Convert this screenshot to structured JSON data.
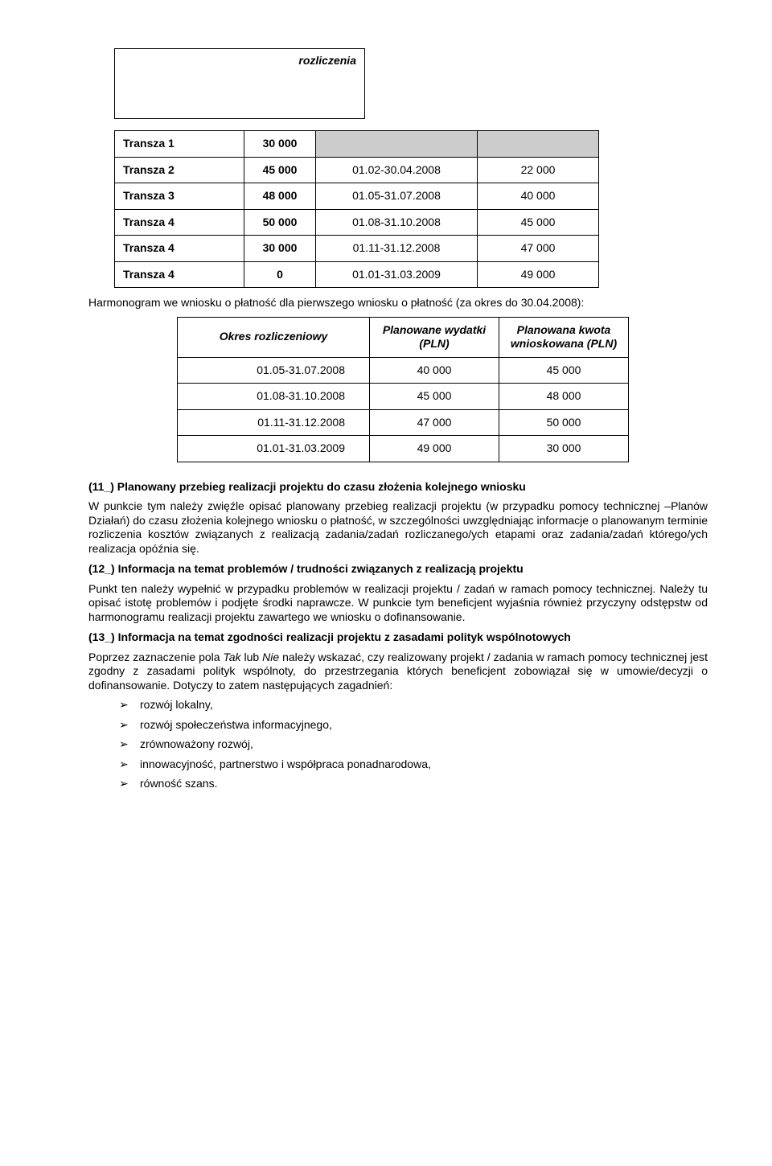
{
  "topCellText": "rozliczenia",
  "table1": {
    "rows": [
      {
        "c1": "Transza 1",
        "c2": "30 000",
        "c3": "",
        "c4": "",
        "grey": true
      },
      {
        "c1": "Transza 2",
        "c2": "45 000",
        "c3": "01.02-30.04.2008",
        "c4": "22 000"
      },
      {
        "c1": "Transza 3",
        "c2": "48 000",
        "c3": "01.05-31.07.2008",
        "c4": "40 000"
      },
      {
        "c1": "Transza 4",
        "c2": "50 000",
        "c3": "01.08-31.10.2008",
        "c4": "45 000"
      },
      {
        "c1": "Transza 4",
        "c2": "30 000",
        "c3": "01.11-31.12.2008",
        "c4": "47 000"
      },
      {
        "c1": "Transza 4",
        "c2": "0",
        "c3": "01.01-31.03.2009",
        "c4": "49 000"
      }
    ]
  },
  "caption1": "Harmonogram we wniosku o płatność dla pierwszego wniosku o płatność (za okres do 30.04.2008):",
  "table2": {
    "headers": {
      "h1": "Okres rozliczeniowy",
      "h2": "Planowane wydatki (PLN)",
      "h3": "Planowana kwota wnioskowana (PLN)"
    },
    "rows": [
      {
        "d1": "01.05-31.07.2008",
        "d2": "40 000",
        "d3": "45 000"
      },
      {
        "d1": "01.08-31.10.2008",
        "d2": "45 000",
        "d3": "48 000"
      },
      {
        "d1": "01.11-31.12.2008",
        "d2": "47 000",
        "d3": "50 000"
      },
      {
        "d1": "01.01-31.03.2009",
        "d2": "49 000",
        "d3": "30 000"
      }
    ]
  },
  "sections": {
    "s11_title": "(11_) Planowany przebieg realizacji projektu do czasu złożenia kolejnego wniosku",
    "s11_body": "W punkcie tym należy zwięźle opisać planowany przebieg realizacji projektu (w przypadku pomocy technicznej –Planów Działań) do czasu złożenia kolejnego wniosku o płatność, w szczególności uwzględniając informacje o planowanym terminie rozliczenia kosztów związanych z realizacją zadania/zadań rozliczanego/ych etapami oraz zadania/zadań którego/ych realizacja opóźnia się.",
    "s12_title": "(12_) Informacja na temat problemów / trudności związanych z realizacją projektu",
    "s12_body": "Punkt ten należy wypełnić w przypadku problemów w realizacji projektu / zadań w ramach pomocy technicznej. Należy tu opisać istotę problemów i podjęte środki naprawcze. W punkcie tym beneficjent wyjaśnia również przyczyny odstępstw od harmonogramu realizacji projektu zawartego we wniosku o dofinansowanie.",
    "s13_title": "(13_) Informacja na temat zgodności realizacji projektu z zasadami polityk wspólnotowych",
    "s13_body_a": "Poprzez zaznaczenie pola ",
    "s13_body_tak": "Tak",
    "s13_body_b": " lub ",
    "s13_body_nie": "Nie",
    "s13_body_c": " należy wskazać, czy realizowany projekt / zadania w ramach pomocy technicznej jest zgodny z zasadami polityk wspólnoty, do przestrzegania których beneficjent zobowiązał się w umowie/decyzji o dofinansowanie. Dotyczy to zatem następujących zagadnień:"
  },
  "bullets": [
    "rozwój lokalny,",
    "rozwój społeczeństwa informacyjnego,",
    "zrównoważony rozwój,",
    "innowacyjność, partnerstwo i współpraca ponadnarodowa,",
    "równość szans."
  ]
}
